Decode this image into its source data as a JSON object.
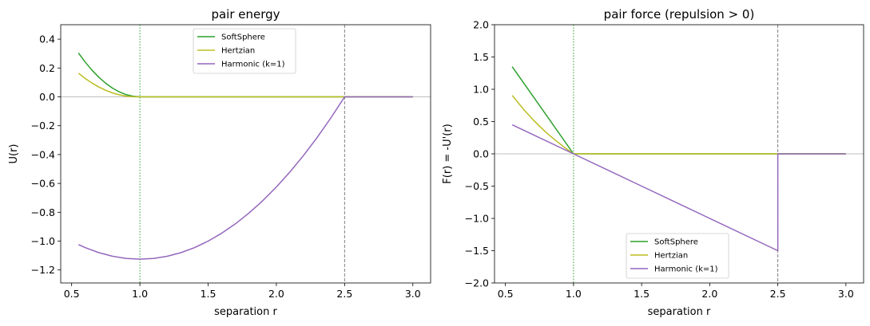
{
  "chart_data": [
    {
      "type": "line",
      "title": "pair energy",
      "xlabel": "separation r",
      "ylabel": "U(r)",
      "xlim": [
        0.42,
        3.13
      ],
      "ylim": [
        -1.29,
        0.5
      ],
      "xticks": [
        0.5,
        1.0,
        1.5,
        2.0,
        2.5,
        3.0
      ],
      "xtick_labels": [
        "0.5",
        "1.0",
        "1.5",
        "2.0",
        "2.5",
        "3.0"
      ],
      "yticks": [
        0.4,
        0.2,
        0.0,
        -0.2,
        -0.4,
        -0.6,
        -0.8,
        -1.0,
        -1.2
      ],
      "ytick_labels": [
        "0.4",
        "0.2",
        "0.0",
        "−0.2",
        "−0.4",
        "−0.6",
        "−0.8",
        "−1.0",
        "−1.2"
      ],
      "grid": false,
      "legend_placement": "upper-center",
      "reference_lines": [
        {
          "orientation": "horizontal",
          "value": 0.0,
          "style": "solid",
          "color": "#aaaaaa"
        },
        {
          "orientation": "vertical",
          "value": 1.0,
          "style": "dotted",
          "color": "#2ca02c"
        },
        {
          "orientation": "vertical",
          "value": 2.5,
          "style": "dashed",
          "color": "#808080"
        }
      ],
      "series": [
        {
          "name": "SoftSphere",
          "color": "#2ca02c",
          "x": [
            0.55,
            0.6,
            0.65,
            0.7,
            0.75,
            0.8,
            0.85,
            0.9,
            0.95,
            1.0,
            1.5,
            2.0,
            2.5,
            3.0
          ],
          "y": [
            0.304,
            0.24,
            0.184,
            0.135,
            0.094,
            0.06,
            0.034,
            0.015,
            0.004,
            0.0,
            0.0,
            0.0,
            0.0,
            0.0
          ]
        },
        {
          "name": "Hertzian",
          "color": "#bcbd22",
          "x": [
            0.55,
            0.6,
            0.65,
            0.7,
            0.75,
            0.8,
            0.85,
            0.9,
            0.95,
            1.0,
            1.5,
            2.0,
            2.5,
            3.0
          ],
          "y": [
            0.164,
            0.127,
            0.095,
            0.068,
            0.045,
            0.027,
            0.014,
            0.005,
            0.001,
            0.0,
            0.0,
            0.0,
            0.0,
            0.0
          ]
        },
        {
          "name": "Harmonic (k=1)",
          "color": "#9467bd",
          "x": [
            0.55,
            0.6,
            0.7,
            0.8,
            0.9,
            1.0,
            1.1,
            1.2,
            1.3,
            1.4,
            1.5,
            1.6,
            1.7,
            1.8,
            1.9,
            2.0,
            2.1,
            2.2,
            2.3,
            2.4,
            2.5,
            2.6,
            2.7,
            2.8,
            2.9,
            3.0
          ],
          "y": [
            -1.024,
            -1.045,
            -1.08,
            -1.105,
            -1.12,
            -1.125,
            -1.12,
            -1.105,
            -1.08,
            -1.045,
            -1.0,
            -0.945,
            -0.88,
            -0.805,
            -0.72,
            -0.625,
            -0.52,
            -0.405,
            -0.28,
            -0.145,
            0.0,
            0.0,
            0.0,
            0.0,
            0.0,
            0.0
          ]
        }
      ]
    },
    {
      "type": "line",
      "title": "pair force (repulsion > 0)",
      "xlabel": "separation r",
      "ylabel": "F(r) = -U'(r)",
      "xlim": [
        0.42,
        3.13
      ],
      "ylim": [
        -2.0,
        2.0
      ],
      "xticks": [
        0.5,
        1.0,
        1.5,
        2.0,
        2.5,
        3.0
      ],
      "xtick_labels": [
        "0.5",
        "1.0",
        "1.5",
        "2.0",
        "2.5",
        "3.0"
      ],
      "yticks": [
        2.0,
        1.5,
        1.0,
        0.5,
        0.0,
        -0.5,
        -1.0,
        -1.5,
        -2.0
      ],
      "ytick_labels": [
        "2.0",
        "1.5",
        "1.0",
        "0.5",
        "0.0",
        "−0.5",
        "−1.0",
        "−1.5",
        "−2.0"
      ],
      "grid": false,
      "legend_placement": "lower-center",
      "reference_lines": [
        {
          "orientation": "horizontal",
          "value": 0.0,
          "style": "solid",
          "color": "#aaaaaa"
        },
        {
          "orientation": "vertical",
          "value": 1.0,
          "style": "dotted",
          "color": "#2ca02c"
        },
        {
          "orientation": "vertical",
          "value": 2.5,
          "style": "dashed",
          "color": "#808080"
        }
      ],
      "series": [
        {
          "name": "SoftSphere",
          "color": "#2ca02c",
          "x": [
            0.55,
            1.0,
            1.5,
            2.0,
            2.5,
            3.0
          ],
          "y": [
            1.35,
            0.0,
            0.0,
            0.0,
            0.0,
            0.0
          ]
        },
        {
          "name": "Hertzian",
          "color": "#bcbd22",
          "x": [
            0.55,
            0.6,
            0.65,
            0.7,
            0.75,
            0.8,
            0.85,
            0.9,
            0.95,
            1.0,
            1.5,
            2.0,
            2.5,
            3.0
          ],
          "y": [
            0.905,
            0.775,
            0.65,
            0.535,
            0.43,
            0.33,
            0.24,
            0.155,
            0.075,
            0.0,
            0.0,
            0.0,
            0.0,
            0.0
          ]
        },
        {
          "name": "Harmonic (k=1)",
          "color": "#9467bd",
          "x": [
            0.55,
            1.0,
            1.5,
            2.0,
            2.5,
            2.5,
            3.0
          ],
          "y": [
            0.45,
            0.0,
            -0.5,
            -1.0,
            -1.5,
            0.0,
            0.0
          ]
        }
      ]
    }
  ]
}
